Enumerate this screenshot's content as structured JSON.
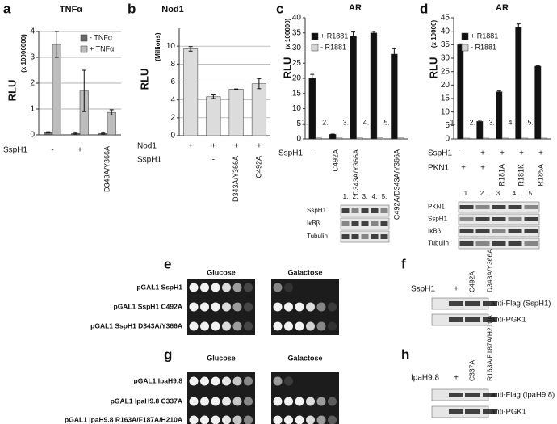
{
  "chart_data": [
    {
      "type": "bar",
      "panel": "a",
      "title": "TNFα",
      "ylabel": "RLU",
      "ylabel_unit": "(x 10000000)",
      "ylim": [
        0,
        4
      ],
      "yticks": [
        0,
        1,
        2,
        3,
        4
      ],
      "grid": true,
      "legend": "upper right",
      "series": [
        {
          "name": "- TNFα",
          "color": "#6b6b6b",
          "values": [
            0.1,
            0.05,
            0.05
          ],
          "errors": [
            0.02,
            0.02,
            0.02
          ]
        },
        {
          "name": "+ TNFα",
          "color": "#bdbdbd",
          "values": [
            3.5,
            1.7,
            0.87
          ],
          "errors": [
            0.5,
            0.8,
            0.1
          ]
        }
      ],
      "rows": [
        {
          "name": "SspH1",
          "labels": [
            "-",
            "+",
            "D343A/Y366A"
          ]
        }
      ]
    },
    {
      "type": "bar",
      "panel": "b",
      "title": "Nod1",
      "ylabel": "RLU",
      "ylabel_unit": "(Millions)",
      "ylim": [
        0,
        12
      ],
      "yticks": [
        0,
        2,
        4,
        6,
        8,
        10
      ],
      "grid": true,
      "series": [
        {
          "color": "#dcdcdc",
          "values": [
            9.7,
            4.35,
            5.2,
            5.8
          ],
          "errors": [
            0.25,
            0.2,
            0.02,
            0.55
          ]
        }
      ],
      "rows": [
        {
          "name": "Nod1",
          "labels": [
            "+",
            "+",
            "+",
            "+"
          ]
        },
        {
          "name": "SspH1",
          "labels": [
            null,
            "-",
            "D343A/Y366A",
            "C492A"
          ]
        }
      ]
    },
    {
      "type": "bar",
      "panel": "c",
      "title": "AR",
      "ylabel": "RLU",
      "ylabel_unit": "(x 100000)",
      "ylim": [
        0,
        40
      ],
      "yticks": [
        0,
        5,
        10,
        15,
        20,
        25,
        30,
        35,
        40
      ],
      "grid": false,
      "legend": "upper left",
      "categories": [
        "1.",
        "2.",
        "3.",
        "4.",
        "5."
      ],
      "series": [
        {
          "name": "+ R1881",
          "color": "#111111",
          "values": [
            20,
            1.5,
            34,
            35,
            28
          ],
          "errors": [
            1.3,
            0.1,
            1.3,
            0.5,
            1.8
          ]
        },
        {
          "name": "- R1881",
          "color": "#d4d4d4",
          "values": [
            0.3,
            0.3,
            0.3,
            0.3,
            0.3
          ]
        }
      ],
      "rows": [
        {
          "name": "SspH1",
          "labels": [
            "-",
            "C492A",
            "D343A/Y366A",
            null,
            "C492A/D343A/Y366A"
          ]
        }
      ],
      "blot": {
        "lanes": [
          "1.",
          "2.",
          "3.",
          "4.",
          "5."
        ],
        "rows": [
          "SspH1",
          "IκBβ",
          "Tubulin"
        ]
      }
    },
    {
      "type": "bar",
      "panel": "d",
      "title": "AR",
      "ylabel": "RLU",
      "ylabel_unit": "(x 10000)",
      "ylim": [
        0,
        45
      ],
      "yticks": [
        0,
        5,
        10,
        15,
        20,
        25,
        30,
        35,
        40,
        45
      ],
      "grid": false,
      "legend": "upper left",
      "categories": [
        "1.",
        "2.",
        "3.",
        "4.",
        "5."
      ],
      "series": [
        {
          "name": "+ R1881",
          "color": "#111111",
          "values": [
            35,
            6.5,
            17.5,
            41.5,
            27
          ],
          "errors": [
            0.3,
            0.4,
            0.3,
            1.2,
            0.2
          ]
        },
        {
          "name": "- R1881",
          "color": "#d4d4d4",
          "values": [
            0.3,
            0.3,
            0.3,
            0.3,
            0.3
          ]
        }
      ],
      "rows": [
        {
          "name": "SspH1",
          "labels": [
            "-",
            "+",
            "+",
            "+",
            "+"
          ]
        },
        {
          "name": "PKN1",
          "labels": [
            "+",
            "+",
            "R181A",
            "R181K",
            "R185A"
          ]
        }
      ],
      "blot": {
        "lanes": [
          "1.",
          "2.",
          "3.",
          "4.",
          "5."
        ],
        "rows": [
          "PKN1",
          "SspH1",
          "IκBβ",
          "Tubulin"
        ]
      }
    }
  ],
  "panels": {
    "e": {
      "letter": "e",
      "headers": [
        "Glucose",
        "Galactose"
      ],
      "rows": [
        "pGAL1 SspH1",
        "pGAL1 SspH1 C492A",
        "pGAL1 SspH1 D343A/Y366A"
      ]
    },
    "f": {
      "letter": "f",
      "row_name": "SspH1",
      "columns": [
        "+",
        "C492A",
        "D343A/Y366A"
      ],
      "blots": [
        "anti-Flag (SspH1)",
        "anti-PGK1"
      ]
    },
    "g": {
      "letter": "g",
      "headers": [
        "Glucose",
        "Galactose"
      ],
      "rows": [
        "pGAL1 IpaH9.8",
        "pGAL1 IpaH9.8 C337A",
        "pGAL1 IpaH9.8 R163A/F187A/H210A"
      ]
    },
    "h": {
      "letter": "h",
      "row_name": "IpaH9.8",
      "columns": [
        "+",
        "C337A",
        "R163A/F187A/H210A"
      ],
      "blots": [
        "anti-Flag (IpaH9.8)",
        "anti-PGK1"
      ]
    }
  }
}
